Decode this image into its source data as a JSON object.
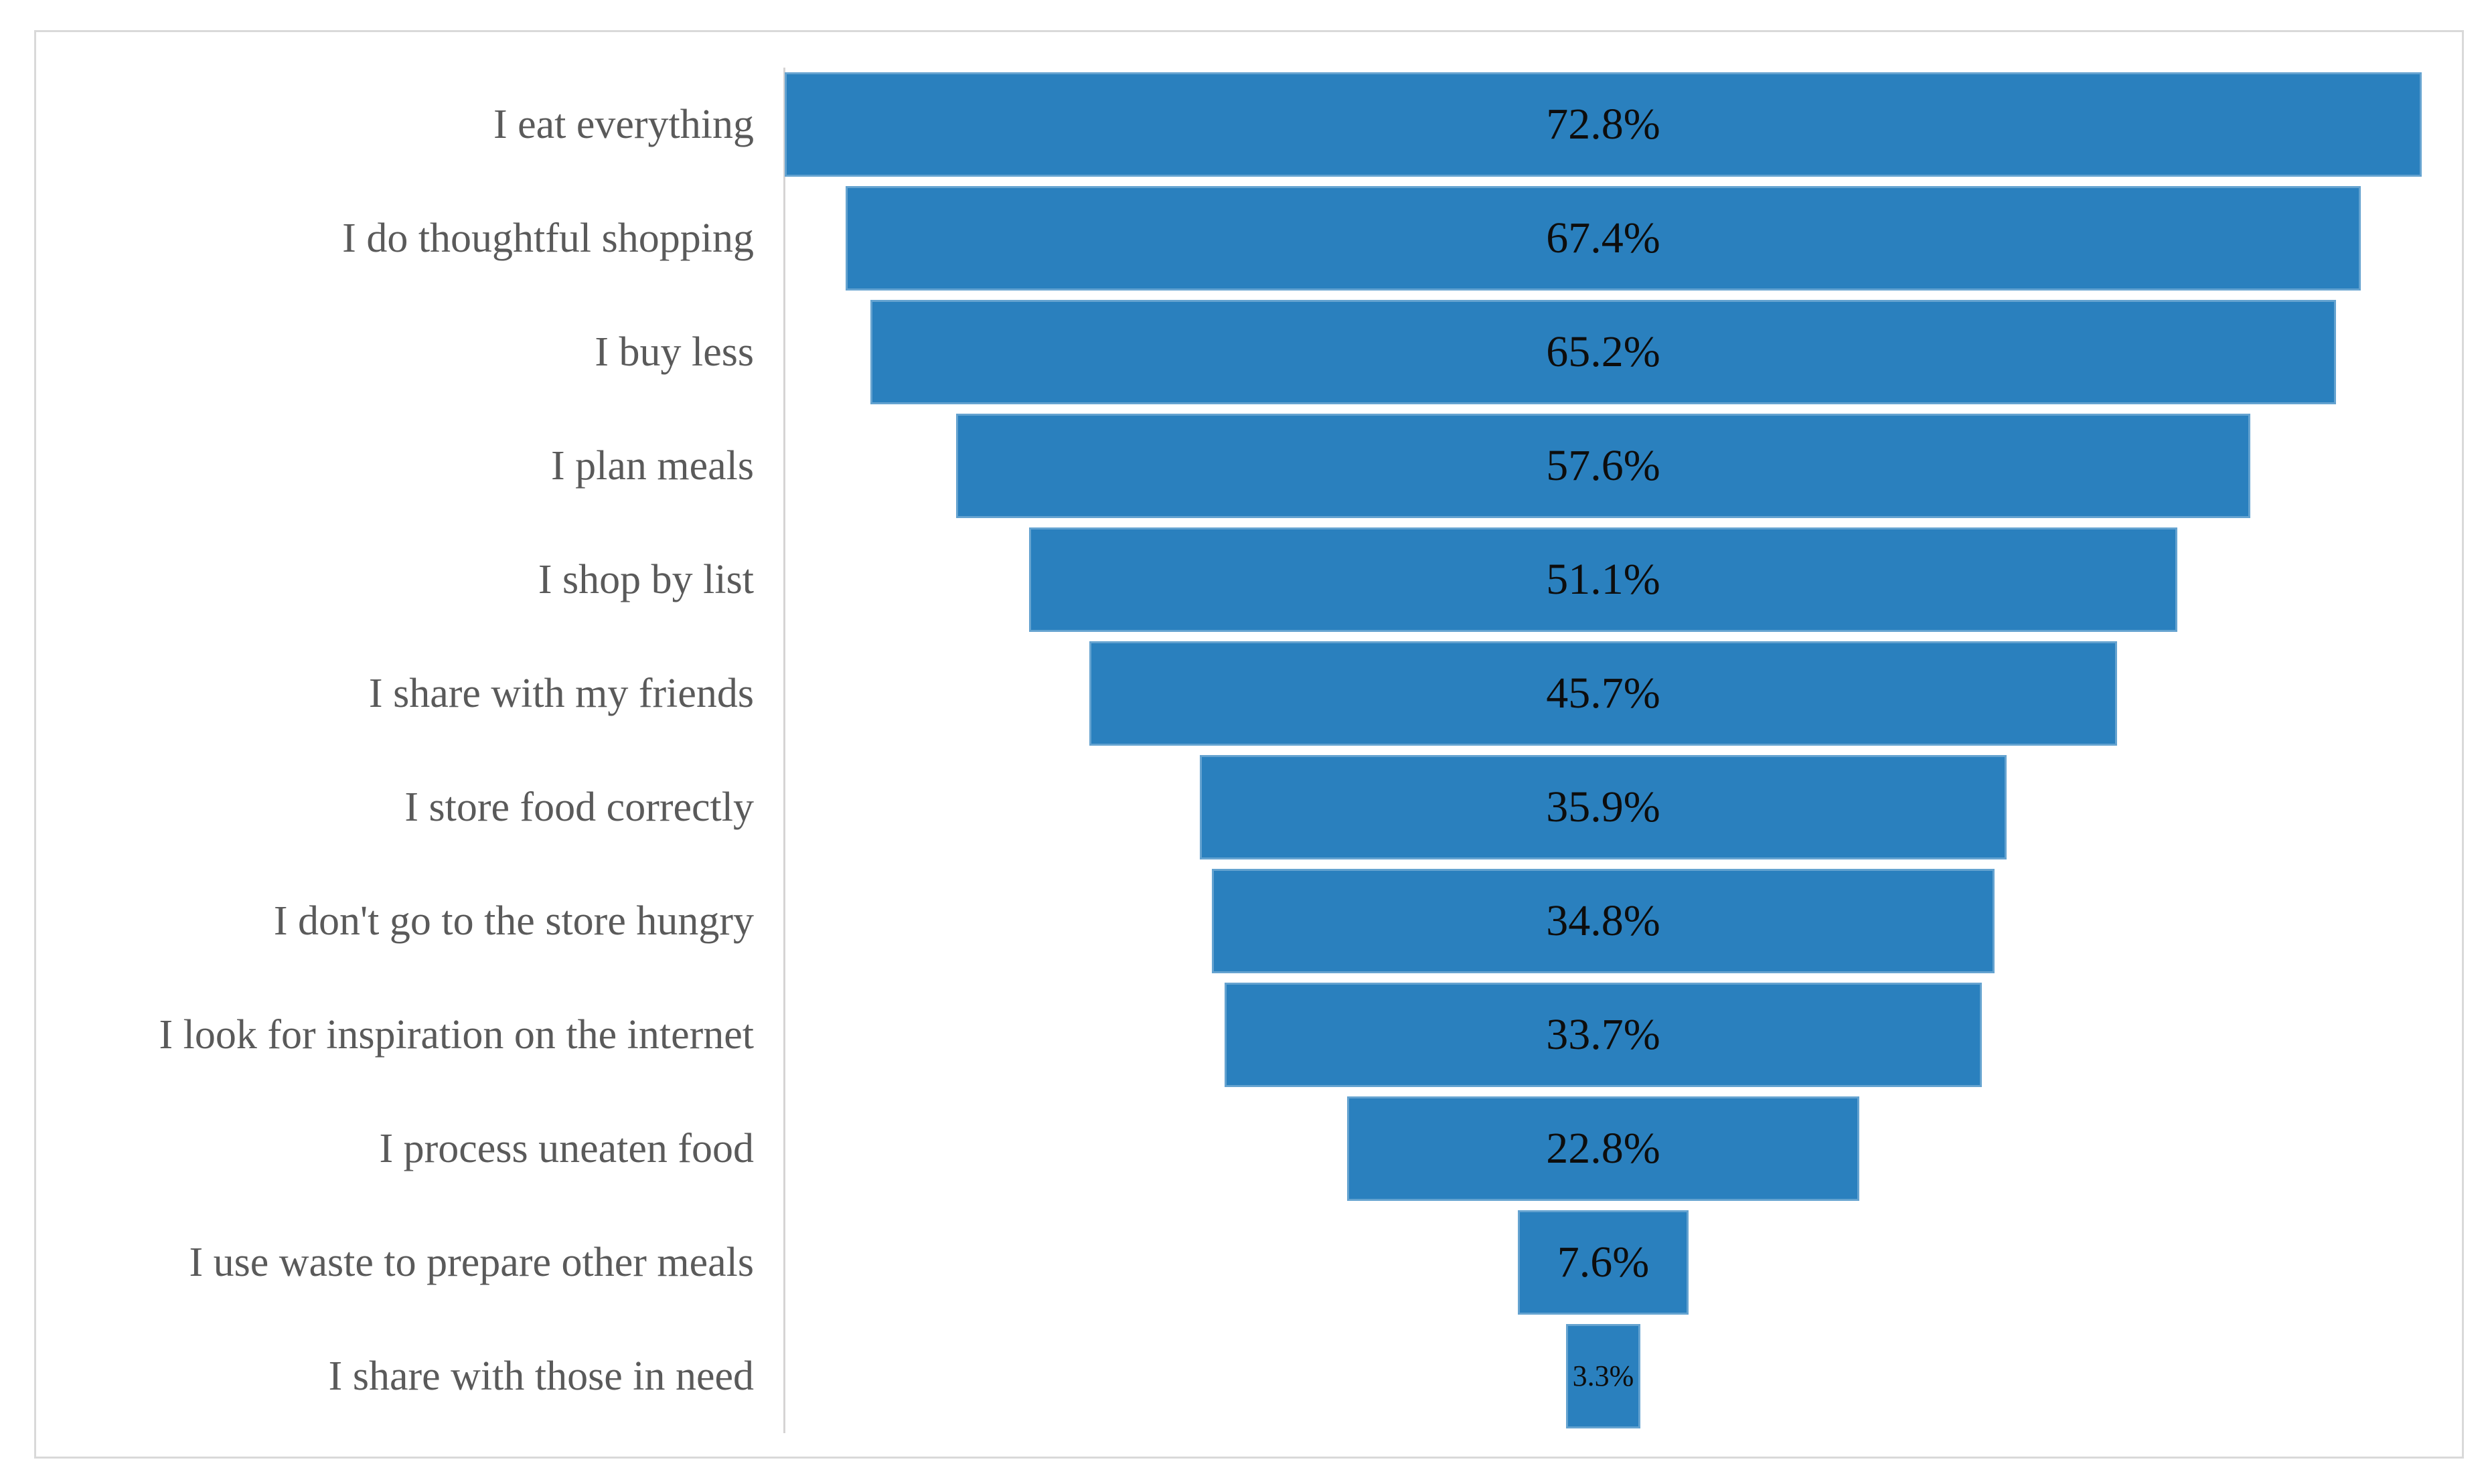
{
  "chart_data": {
    "type": "bar",
    "subtype": "horizontal-centered-funnel",
    "title": "",
    "xlabel": "",
    "ylabel": "",
    "grid": false,
    "legend": false,
    "categories": [
      "I eat everything",
      "I do thoughtful shopping",
      "I buy less",
      "I plan meals",
      "I shop by list",
      "I share with my friends",
      "I store food correctly",
      "I don't go to the store hungry",
      "I look for inspiration on the internet",
      "I process uneaten food",
      "I use waste to prepare other meals",
      "I share with those in need"
    ],
    "values": [
      72.8,
      67.4,
      65.2,
      57.6,
      51.1,
      45.7,
      35.9,
      34.8,
      33.7,
      22.8,
      7.6,
      3.3
    ],
    "value_labels": [
      "72.8%",
      "67.4%",
      "65.2%",
      "57.6%",
      "51.1%",
      "45.7%",
      "35.9%",
      "34.8%",
      "33.7%",
      "22.8%",
      "7.6%",
      "3.3%"
    ],
    "value_axis_max_shown_as_full_width": 72.8,
    "colors": {
      "bar_fill": "#2a80be",
      "bar_edge_highlight": "#5b9bd5",
      "value_text": "#0d0d0d",
      "category_text": "#5a5a5a",
      "axis_line": "#d6d4d4",
      "frame_border": "#d9d9d9",
      "background": "#ffffff"
    }
  }
}
